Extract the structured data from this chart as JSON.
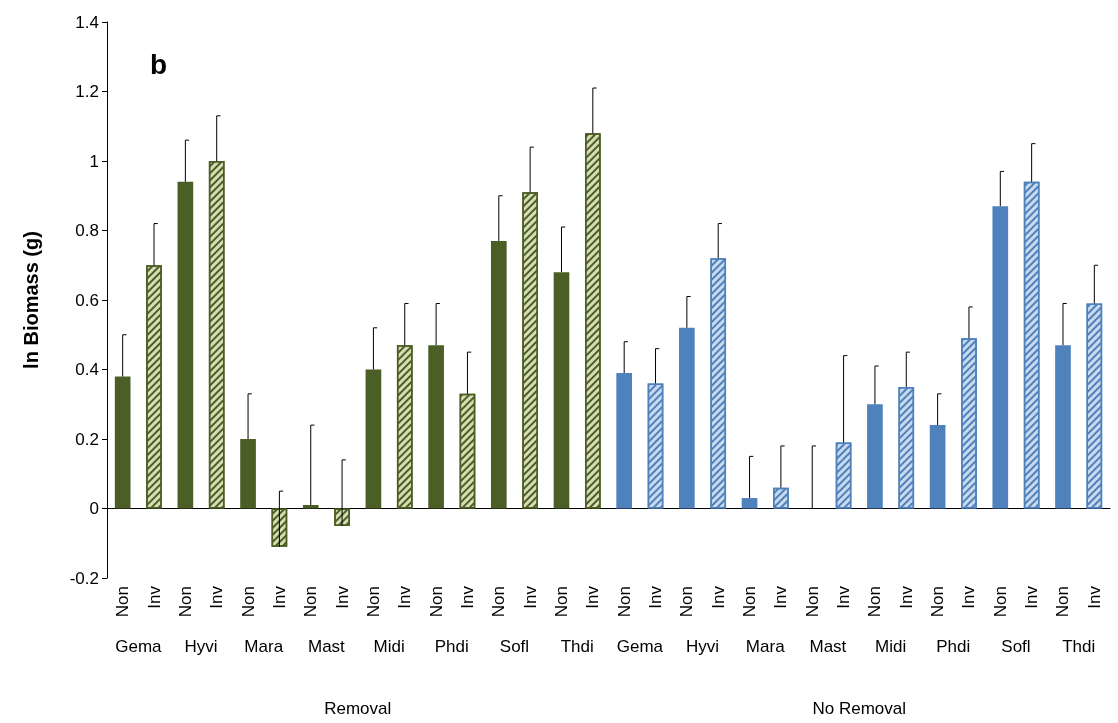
{
  "chart_data": {
    "type": "bar",
    "ylabel": "ln Biomass (g)",
    "categories": [
      "Non",
      "Inv",
      "Non",
      "Inv",
      "Non",
      "Inv",
      "Non",
      "Inv",
      "Non",
      "Inv",
      "Non",
      "Inv",
      "Non",
      "Inv",
      "Non",
      "Inv",
      "Non",
      "Inv",
      "Non",
      "Inv",
      "Non",
      "Inv",
      "Non",
      "Inv",
      "Non",
      "Inv",
      "Non",
      "Inv",
      "Non",
      "Inv",
      "Non",
      "Inv"
    ],
    "series": [
      {
        "color": "#4b5e26",
        "values": [
          0.38,
          null,
          0.94,
          null,
          0.2,
          null,
          0.01,
          null,
          0.4,
          null,
          0.47,
          null,
          0.77,
          null,
          0.68,
          null,
          null,
          null,
          null,
          null,
          null,
          null,
          null,
          null,
          null,
          null,
          null,
          null,
          null,
          null,
          null,
          null
        ],
        "errors": [
          [
            0.38,
            0.5
          ],
          null,
          [
            0.94,
            1.06
          ],
          null,
          [
            0.2,
            0.33
          ],
          null,
          [
            0.01,
            0.24
          ],
          null,
          [
            0.4,
            0.52
          ],
          null,
          [
            0.47,
            0.59
          ],
          null,
          [
            0.77,
            0.9
          ],
          null,
          [
            0.68,
            0.81
          ],
          null,
          null,
          null,
          null,
          null,
          null,
          null,
          null,
          null,
          null,
          null,
          null,
          null,
          null,
          null,
          null,
          null
        ]
      },
      {
        "color": "#d7dcb3",
        "values": [
          null,
          0.7,
          null,
          1.0,
          null,
          -0.11,
          null,
          -0.05,
          null,
          0.47,
          null,
          0.33,
          null,
          0.91,
          null,
          1.08,
          null,
          null,
          null,
          null,
          null,
          null,
          null,
          null,
          null,
          null,
          null,
          null,
          null,
          null,
          null,
          null
        ],
        "errors": [
          null,
          [
            0.7,
            0.82
          ],
          null,
          [
            1.0,
            1.13
          ],
          null,
          [
            -0.11,
            0.05
          ],
          null,
          [
            -0.05,
            0.14
          ],
          null,
          [
            0.47,
            0.59
          ],
          null,
          [
            0.33,
            0.45
          ],
          null,
          [
            0.91,
            1.04
          ],
          null,
          [
            1.08,
            1.21
          ],
          null,
          null,
          null,
          null,
          null,
          null,
          null,
          null,
          null,
          null,
          null,
          null,
          null,
          null,
          null,
          null
        ]
      },
      {
        "color": "#4f81bd",
        "values": [
          null,
          null,
          null,
          null,
          null,
          null,
          null,
          null,
          null,
          null,
          null,
          null,
          null,
          null,
          null,
          null,
          0.39,
          null,
          0.52,
          null,
          0.03,
          null,
          0.0,
          null,
          0.3,
          null,
          0.24,
          null,
          0.87,
          null,
          0.47,
          null
        ],
        "errors": [
          null,
          null,
          null,
          null,
          null,
          null,
          null,
          null,
          null,
          null,
          null,
          null,
          null,
          null,
          null,
          null,
          [
            0.39,
            0.48
          ],
          null,
          [
            0.52,
            0.61
          ],
          null,
          [
            0.03,
            0.15
          ],
          null,
          [
            0.0,
            0.18
          ],
          null,
          [
            0.3,
            0.41
          ],
          null,
          [
            0.24,
            0.33
          ],
          null,
          [
            0.87,
            0.97
          ],
          null,
          [
            0.47,
            0.59
          ],
          null
        ]
      },
      {
        "color": "#c9d9ee",
        "values": [
          null,
          null,
          null,
          null,
          null,
          null,
          null,
          null,
          null,
          null,
          null,
          null,
          null,
          null,
          null,
          null,
          null,
          0.36,
          null,
          0.72,
          null,
          0.06,
          null,
          0.19,
          null,
          0.35,
          null,
          0.49,
          null,
          0.94,
          null,
          0.59
        ],
        "errors": [
          null,
          null,
          null,
          null,
          null,
          null,
          null,
          null,
          null,
          null,
          null,
          null,
          null,
          null,
          null,
          null,
          null,
          [
            0.36,
            0.46
          ],
          null,
          [
            0.72,
            0.82
          ],
          null,
          [
            0.06,
            0.18
          ],
          null,
          [
            0.19,
            0.44
          ],
          null,
          [
            0.35,
            0.45
          ],
          null,
          [
            0.49,
            0.58
          ],
          null,
          [
            0.94,
            1.05
          ],
          null,
          [
            0.59,
            0.7
          ]
        ]
      }
    ],
    "ylim": [
      -0.2,
      1.4
    ],
    "yticks": [
      -0.2,
      0,
      0.2,
      0.4,
      0.6,
      0.8,
      1,
      1.2,
      1.4
    ],
    "annotations": [
      "b",
      "Gema",
      "Hyvi",
      "Mara",
      "Mast",
      "Midi",
      "Phdi",
      "Sofl",
      "Thdi",
      "Gema",
      "Hyvi",
      "Mara",
      "Mast",
      "Midi",
      "Phdi",
      "Sofl",
      "Thdi",
      "Removal",
      "No Removal"
    ]
  }
}
